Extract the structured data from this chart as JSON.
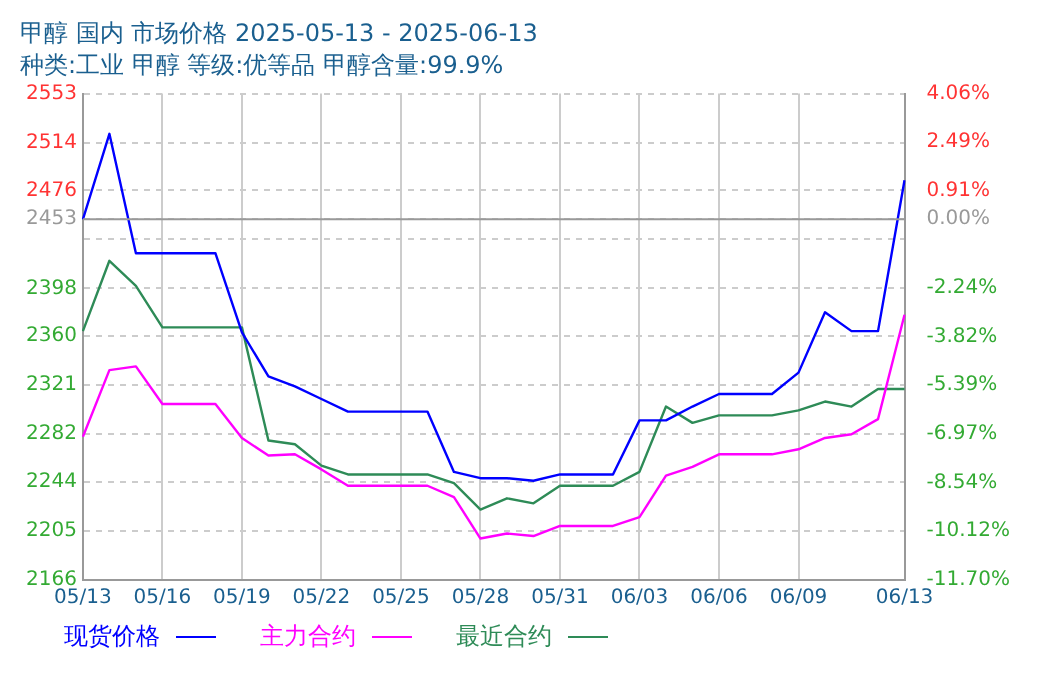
{
  "chart_data": {
    "type": "line",
    "title": "甲醇 国内 市场价格 2025-05-13 - 2025-06-13",
    "subtitle": "种类:工业 甲醇 等级:优等品 甲醇含量:99.9%",
    "categories": [
      "05/13",
      null,
      null,
      "05/16",
      null,
      null,
      "05/19",
      null,
      null,
      "05/22",
      null,
      null,
      "05/25",
      null,
      null,
      "05/28",
      null,
      null,
      "05/31",
      null,
      null,
      "06/03",
      null,
      null,
      "06/06",
      null,
      null,
      "06/09",
      null,
      null,
      null,
      "06/13"
    ],
    "series": [
      {
        "name": "现货价格",
        "color": "#0000ff",
        "values": [
          2453,
          2521,
          2426,
          2426,
          2426,
          2426,
          2363,
          2328,
          2320,
          2310,
          2300,
          2300,
          2300,
          2300,
          2252,
          2247,
          2247,
          2245,
          2250,
          2250,
          2250,
          2293,
          2293,
          2304,
          2314,
          2314,
          2314,
          2331,
          2379,
          2364,
          2364,
          2484
        ]
      },
      {
        "name": "主力合约",
        "color": "#ff00ff",
        "values": [
          2280,
          2333,
          2336,
          2306,
          2306,
          2306,
          2279,
          2265,
          2266,
          2254,
          2241,
          2241,
          2241,
          2241,
          2232,
          2199,
          2203,
          2201,
          2209,
          2209,
          2209,
          2216,
          2249,
          2256,
          2266,
          2266,
          2266,
          2270,
          2279,
          2282,
          2294,
          2377
        ]
      },
      {
        "name": "最近合约",
        "color": "#2e8b57",
        "values": [
          2364,
          2420,
          2400,
          2367,
          2367,
          2367,
          2367,
          2277,
          2274,
          2257,
          2250,
          2250,
          2250,
          2250,
          2243,
          2222,
          2231,
          2227,
          2241,
          2241,
          2241,
          2252,
          2304,
          2291,
          2297,
          2297,
          2297,
          2301,
          2308,
          2304,
          2318,
          2318
        ]
      }
    ],
    "ylim": [
      2166,
      2553
    ],
    "yticks": [
      2553,
      2514,
      2476,
      2453,
      {
        "value": 2437,
        "label": null
      },
      2398,
      2360,
      2321,
      2282,
      2244,
      2205,
      2166
    ],
    "y2lim": [
      -11.7,
      4.06
    ],
    "y2ticks": [
      {
        "value": 4.06,
        "label": "4.06%"
      },
      {
        "value": 2.49,
        "label": "2.49%"
      },
      {
        "value": 0.91,
        "label": "0.91%"
      },
      {
        "value": 0,
        "label": "0.00%"
      },
      {
        "value": -0.67,
        "label": null
      },
      {
        "value": -2.24,
        "label": "-2.24%"
      },
      {
        "value": -3.82,
        "label": "-3.82%"
      },
      {
        "value": -5.39,
        "label": "-5.39%"
      },
      {
        "value": -6.97,
        "label": "-6.97%"
      },
      {
        "value": -8.54,
        "label": "-8.54%"
      },
      {
        "value": -10.12,
        "label": "-10.12%"
      },
      {
        "value": -11.7,
        "label": "-11.70%"
      }
    ],
    "ref_lines": [
      {
        "axis": "y",
        "value": 2453,
        "color": "#999999"
      }
    ],
    "grid": true,
    "legend": "bottom",
    "marker": "none",
    "line_style": "solid"
  }
}
